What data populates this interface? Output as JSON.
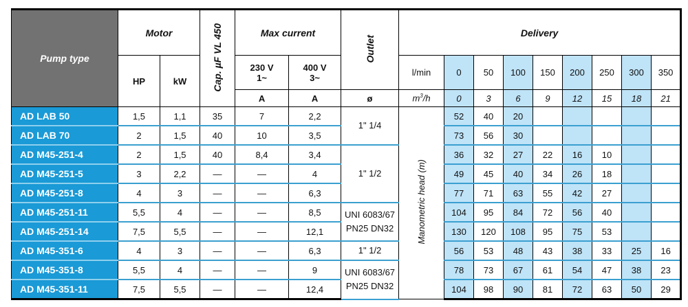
{
  "header": {
    "pump_type": "Pump type",
    "motor": "Motor",
    "hp": "HP",
    "kw": "kW",
    "cap": "Cap. µF VL 450",
    "max_current": "Max current",
    "v230": "230 V",
    "v230_phase": "1~",
    "v400": "400 V",
    "v400_phase": "3~",
    "unit_a1": "A",
    "unit_a2": "A",
    "outlet": "Outlet",
    "outlet_unit": "ø",
    "delivery": "Delivery",
    "lmin_label": "l/min",
    "m3h_label": "m³/h",
    "lmin": [
      "0",
      "50",
      "100",
      "150",
      "200",
      "250",
      "300",
      "350"
    ],
    "m3h": [
      "0",
      "3",
      "6",
      "9",
      "12",
      "15",
      "18",
      "21"
    ],
    "manometric_head": "Manometric head (m)"
  },
  "colors": {
    "pump_header_bg": "#727272",
    "pump_name_bg": "#1a9ad6",
    "shaded_column": "#bfe3f7",
    "row_separator": "#3a9fd0"
  },
  "rows": [
    {
      "name": "AD LAB 50",
      "hp": "1,5",
      "kw": "1,1",
      "cap": "35",
      "a230": "7",
      "a400": "2,2",
      "head": [
        "52",
        "40",
        "20",
        "",
        "",
        "",
        "",
        ""
      ]
    },
    {
      "name": "AD LAB 70",
      "hp": "2",
      "kw": "1,5",
      "cap": "40",
      "a230": "10",
      "a400": "3,5",
      "head": [
        "73",
        "56",
        "30",
        "",
        "",
        "",
        "",
        ""
      ]
    },
    {
      "name": "AD M45-251-4",
      "hp": "2",
      "kw": "1,5",
      "cap": "40",
      "a230": "8,4",
      "a400": "3,4",
      "head": [
        "36",
        "32",
        "27",
        "22",
        "16",
        "10",
        "",
        ""
      ]
    },
    {
      "name": "AD M45-251-5",
      "hp": "3",
      "kw": "2,2",
      "cap": "—",
      "a230": "—",
      "a400": "4",
      "head": [
        "49",
        "45",
        "40",
        "34",
        "26",
        "18",
        "",
        ""
      ]
    },
    {
      "name": "AD M45-251-8",
      "hp": "4",
      "kw": "3",
      "cap": "—",
      "a230": "—",
      "a400": "6,3",
      "head": [
        "77",
        "71",
        "63",
        "55",
        "42",
        "27",
        "",
        ""
      ]
    },
    {
      "name": "AD M45-251-11",
      "hp": "5,5",
      "kw": "4",
      "cap": "—",
      "a230": "—",
      "a400": "8,5",
      "head": [
        "104",
        "95",
        "84",
        "72",
        "56",
        "40",
        "",
        ""
      ]
    },
    {
      "name": "AD M45-251-14",
      "hp": "7,5",
      "kw": "5,5",
      "cap": "—",
      "a230": "—",
      "a400": "12,1",
      "head": [
        "130",
        "120",
        "108",
        "95",
        "75",
        "53",
        "",
        ""
      ]
    },
    {
      "name": "AD M45-351-6",
      "hp": "4",
      "kw": "3",
      "cap": "—",
      "a230": "—",
      "a400": "6,3",
      "head": [
        "56",
        "53",
        "48",
        "43",
        "38",
        "33",
        "25",
        "16"
      ]
    },
    {
      "name": "AD M45-351-8",
      "hp": "5,5",
      "kw": "4",
      "cap": "—",
      "a230": "—",
      "a400": "9",
      "head": [
        "78",
        "73",
        "67",
        "61",
        "54",
        "47",
        "38",
        "23"
      ]
    },
    {
      "name": "AD M45-351-11",
      "hp": "7,5",
      "kw": "5,5",
      "cap": "—",
      "a230": "—",
      "a400": "12,4",
      "head": [
        "104",
        "98",
        "90",
        "81",
        "72",
        "63",
        "50",
        "29"
      ]
    }
  ],
  "outlets": [
    {
      "label": "1\" 1/4",
      "span": 2
    },
    {
      "label": "1\" 1/2",
      "span": 3
    },
    {
      "label": "UNI 6083/67 PN25 DN32",
      "span": 2
    },
    {
      "label": "1\" 1/2",
      "span": 1
    },
    {
      "label": "UNI 6083/67 PN25 DN32",
      "span": 2
    }
  ]
}
